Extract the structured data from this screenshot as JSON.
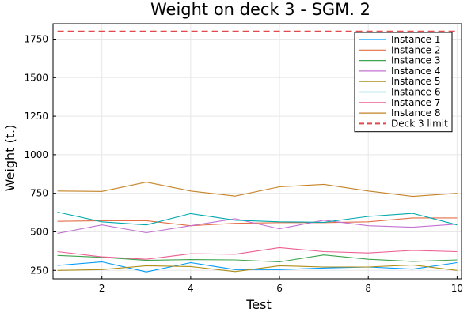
{
  "chart_data": {
    "type": "line",
    "title": "Weight on deck 3 - SGM. 2",
    "xlabel": "Test",
    "ylabel": "Weight (t.)",
    "xlim": [
      0.9,
      10.1
    ],
    "ylim": [
      195,
      1850
    ],
    "xticks": [
      2,
      4,
      6,
      8,
      10
    ],
    "yticks": [
      250,
      500,
      750,
      1000,
      1250,
      1500,
      1750
    ],
    "xtick_labels": [
      "2",
      "4",
      "6",
      "8",
      "10"
    ],
    "ytick_labels": [
      "250",
      "500",
      "750",
      "1000",
      "1250",
      "1500",
      "1750"
    ],
    "grid": true,
    "legend_position": "top-right",
    "x": [
      1,
      2,
      3,
      4,
      5,
      6,
      7,
      8,
      9,
      10
    ],
    "series": [
      {
        "name": "Instance 1",
        "color": "#009AFA",
        "values": [
          282,
          305,
          240,
          300,
          255,
          255,
          265,
          272,
          258,
          300
        ]
      },
      {
        "name": "Instance 2",
        "color": "#E36F47",
        "values": [
          568,
          572,
          572,
          540,
          555,
          560,
          560,
          565,
          590,
          590
        ]
      },
      {
        "name": "Instance 3",
        "color": "#3EA44E",
        "values": [
          347,
          335,
          315,
          320,
          318,
          305,
          350,
          322,
          308,
          318
        ]
      },
      {
        "name": "Instance 4",
        "color": "#C371D2",
        "values": [
          490,
          545,
          495,
          540,
          585,
          520,
          575,
          540,
          530,
          550
        ]
      },
      {
        "name": "Instance 5",
        "color": "#AC8E18",
        "values": [
          250,
          255,
          280,
          275,
          242,
          280,
          272,
          272,
          285,
          250
        ]
      },
      {
        "name": "Instance 6",
        "color": "#00A9AD",
        "values": [
          628,
          565,
          545,
          618,
          575,
          565,
          562,
          600,
          620,
          545
        ]
      },
      {
        "name": "Instance 7",
        "color": "#ED5E93",
        "values": [
          372,
          338,
          322,
          358,
          355,
          398,
          372,
          363,
          380,
          372
        ]
      },
      {
        "name": "Instance 8",
        "color": "#C68225",
        "values": [
          765,
          762,
          822,
          765,
          732,
          792,
          808,
          765,
          730,
          750
        ]
      },
      {
        "name": "Deck 3 limit",
        "color": "#E3494A",
        "dashed": true,
        "values": [
          1800,
          1800,
          1800,
          1800,
          1800,
          1800,
          1800,
          1800,
          1800,
          1800
        ]
      }
    ]
  }
}
